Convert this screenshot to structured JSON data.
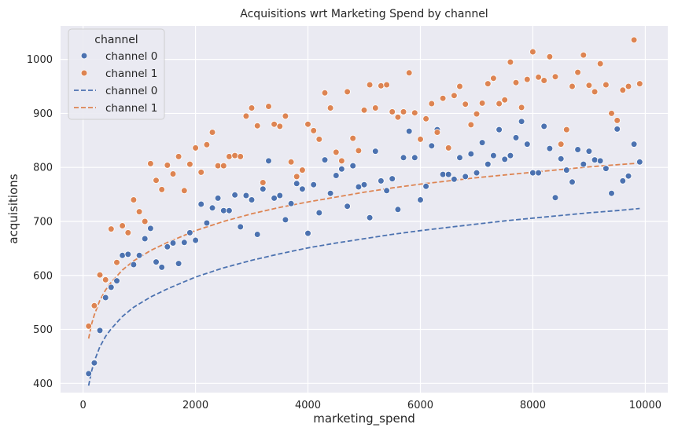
{
  "chart_data": {
    "type": "scatter",
    "title": "Acquisitions wrt Marketing Spend by channel",
    "xlabel": "marketing_spend",
    "ylabel": "acquisitions",
    "xlim": [
      -400,
      10400
    ],
    "ylim": [
      383,
      1062
    ],
    "xticks": [
      0,
      2000,
      4000,
      6000,
      8000,
      10000
    ],
    "yticks": [
      400,
      500,
      600,
      700,
      800,
      900,
      1000
    ],
    "grid": true,
    "legend_position": "top-left",
    "legend": {
      "title": "channel",
      "entries": [
        {
          "label": "channel 0",
          "kind": "marker",
          "color": "#4c72b0"
        },
        {
          "label": "channel 1",
          "kind": "marker",
          "color": "#dd8452"
        },
        {
          "label": "channel 0",
          "kind": "dashed-line",
          "color": "#4c72b0"
        },
        {
          "label": "channel 1",
          "kind": "dashed-line",
          "color": "#dd8452"
        }
      ]
    },
    "colors": {
      "channel 0": "#4c72b0",
      "channel 1": "#dd8452",
      "background": "#eaeaf2",
      "grid": "#ffffff"
    },
    "series": [
      {
        "name": "channel 0",
        "kind": "scatter",
        "color": "#4c72b0",
        "x": [
          100,
          200,
          300,
          400,
          500,
          600,
          700,
          800,
          900,
          1000,
          1100,
          1200,
          1300,
          1400,
          1500,
          1600,
          1700,
          1800,
          1900,
          2000,
          2100,
          2200,
          2300,
          2400,
          2500,
          2600,
          2700,
          2800,
          2900,
          3000,
          3100,
          3200,
          3300,
          3400,
          3500,
          3600,
          3700,
          3800,
          3900,
          4000,
          4100,
          4200,
          4300,
          4400,
          4500,
          4600,
          4700,
          4800,
          4900,
          5000,
          5100,
          5200,
          5300,
          5400,
          5500,
          5600,
          5700,
          5800,
          5900,
          6000,
          6100,
          6200,
          6300,
          6400,
          6500,
          6600,
          6700,
          6800,
          6900,
          7000,
          7100,
          7200,
          7300,
          7400,
          7500,
          7600,
          7700,
          7800,
          7900,
          8000,
          8100,
          8200,
          8300,
          8400,
          8500,
          8600,
          8700,
          8800,
          8900,
          9000,
          9100,
          9200,
          9300,
          9400,
          9500,
          9600,
          9700,
          9800,
          9900
        ],
        "y": [
          418,
          438,
          498,
          559,
          578,
          590,
          637,
          639,
          620,
          637,
          668,
          687,
          625,
          615,
          653,
          660,
          622,
          661,
          679,
          665,
          732,
          697,
          725,
          743,
          720,
          720,
          749,
          690,
          748,
          740,
          676,
          760,
          812,
          743,
          748,
          703,
          733,
          770,
          760,
          678,
          768,
          716,
          814,
          752,
          785,
          797,
          728,
          803,
          764,
          768,
          707,
          830,
          775,
          757,
          779,
          722,
          818,
          867,
          818,
          740,
          765,
          840,
          870,
          787,
          787,
          778,
          818,
          783,
          825,
          790,
          846,
          806,
          822,
          870,
          815,
          822,
          855,
          885,
          843,
          790,
          790,
          876,
          835,
          744,
          816,
          795,
          773,
          833,
          806,
          830,
          814,
          812,
          798,
          752,
          871,
          775,
          784,
          843,
          810
        ]
      },
      {
        "name": "channel 1",
        "kind": "scatter",
        "color": "#dd8452",
        "x": [
          100,
          200,
          300,
          400,
          500,
          600,
          700,
          800,
          900,
          1000,
          1100,
          1200,
          1300,
          1400,
          1500,
          1600,
          1700,
          1800,
          1900,
          2000,
          2100,
          2200,
          2300,
          2400,
          2500,
          2600,
          2700,
          2800,
          2900,
          3000,
          3100,
          3200,
          3300,
          3400,
          3500,
          3600,
          3700,
          3800,
          3900,
          4000,
          4100,
          4200,
          4300,
          4400,
          4500,
          4600,
          4700,
          4800,
          4900,
          5000,
          5100,
          5200,
          5300,
          5400,
          5500,
          5600,
          5700,
          5800,
          5900,
          6000,
          6100,
          6200,
          6300,
          6400,
          6500,
          6600,
          6700,
          6800,
          6900,
          7000,
          7100,
          7200,
          7300,
          7400,
          7500,
          7600,
          7700,
          7800,
          7900,
          8000,
          8100,
          8200,
          8300,
          8400,
          8500,
          8600,
          8700,
          8800,
          8900,
          9000,
          9100,
          9200,
          9300,
          9400,
          9500,
          9600,
          9700,
          9800,
          9900
        ],
        "y": [
          506,
          544,
          601,
          592,
          686,
          624,
          692,
          679,
          740,
          718,
          700,
          807,
          776,
          759,
          804,
          788,
          820,
          757,
          806,
          836,
          791,
          842,
          865,
          803,
          803,
          820,
          822,
          820,
          895,
          910,
          877,
          772,
          913,
          880,
          876,
          895,
          810,
          783,
          795,
          880,
          868,
          852,
          938,
          910,
          828,
          812,
          940,
          854,
          831,
          906,
          953,
          910,
          951,
          953,
          903,
          893,
          903,
          975,
          901,
          852,
          890,
          918,
          865,
          928,
          836,
          933,
          950,
          917,
          879,
          899,
          919,
          955,
          965,
          918,
          925,
          995,
          957,
          911,
          963,
          1014,
          967,
          961,
          1005,
          968,
          843,
          870,
          950,
          976,
          1008,
          952,
          940,
          992,
          953,
          900,
          887,
          943,
          950,
          1036,
          955
        ]
      },
      {
        "name": "channel 0",
        "kind": "fit-line",
        "color": "#4c72b0",
        "x": [
          100,
          150,
          200,
          300,
          400,
          500,
          700,
          900,
          1200,
          1500,
          2000,
          2500,
          3000,
          3500,
          4000,
          4500,
          5000,
          5500,
          6000,
          6500,
          7000,
          7500,
          8000,
          8500,
          9000,
          9500,
          9900
        ],
        "y": [
          396,
          422,
          441,
          468,
          487,
          501,
          524,
          541,
          560,
          575,
          597,
          614,
          628,
          640,
          651,
          660,
          668,
          676,
          683,
          689,
          695,
          701,
          706,
          711,
          716,
          720,
          724
        ]
      },
      {
        "name": "channel 1",
        "kind": "fit-line",
        "color": "#dd8452",
        "x": [
          100,
          150,
          200,
          300,
          400,
          500,
          700,
          900,
          1200,
          1500,
          2000,
          2500,
          3000,
          3500,
          4000,
          4500,
          5000,
          5500,
          6000,
          6500,
          7000,
          7500,
          8000,
          8500,
          9000,
          9500,
          9900
        ],
        "y": [
          483,
          509,
          527,
          554,
          573,
          587,
          610,
          627,
          646,
          661,
          683,
          700,
          714,
          726,
          736,
          745,
          754,
          762,
          769,
          775,
          781,
          786,
          791,
          796,
          801,
          805,
          808
        ]
      }
    ]
  }
}
